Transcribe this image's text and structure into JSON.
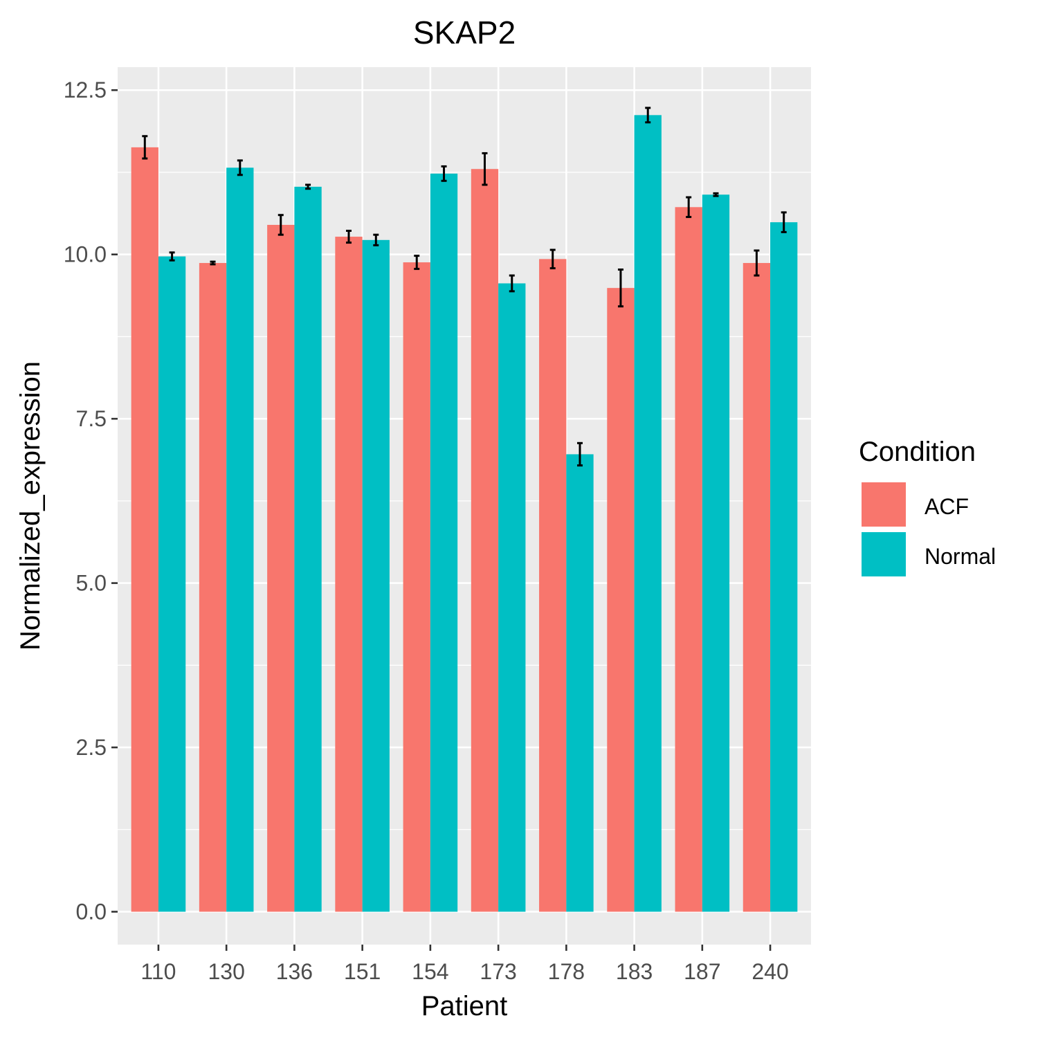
{
  "chart_data": {
    "type": "bar",
    "title": "SKAP2",
    "xlabel": "Patient",
    "ylabel": "Normalized_expression",
    "categories": [
      "110",
      "130",
      "136",
      "151",
      "154",
      "173",
      "178",
      "183",
      "187",
      "240"
    ],
    "ylim": [
      -0.5,
      12.85
    ],
    "yticks": [
      "0.0",
      "2.5",
      "5.0",
      "7.5",
      "10.0",
      "12.5"
    ],
    "ytick_values": [
      0,
      2.5,
      5,
      7.5,
      10,
      12.5
    ],
    "grid": true,
    "legend": {
      "title": "Condition",
      "position": "right"
    },
    "series": [
      {
        "name": "ACF",
        "color": "#F8766D",
        "values": [
          11.63,
          9.87,
          10.45,
          10.27,
          9.88,
          11.3,
          9.93,
          9.49,
          10.72,
          9.87
        ],
        "errors": [
          0.17,
          0.02,
          0.15,
          0.09,
          0.1,
          0.24,
          0.14,
          0.28,
          0.15,
          0.19
        ]
      },
      {
        "name": "Normal",
        "color": "#00BFC4",
        "values": [
          9.97,
          11.32,
          11.03,
          10.22,
          11.23,
          9.56,
          6.96,
          12.12,
          10.91,
          10.49
        ],
        "errors": [
          0.06,
          0.11,
          0.03,
          0.08,
          0.11,
          0.12,
          0.17,
          0.11,
          0.02,
          0.15
        ]
      }
    ]
  },
  "colors": {
    "panel_background": "#EBEBEB",
    "grid": "#FFFFFF",
    "acf": "#F8766D",
    "normal": "#00BFC4"
  }
}
